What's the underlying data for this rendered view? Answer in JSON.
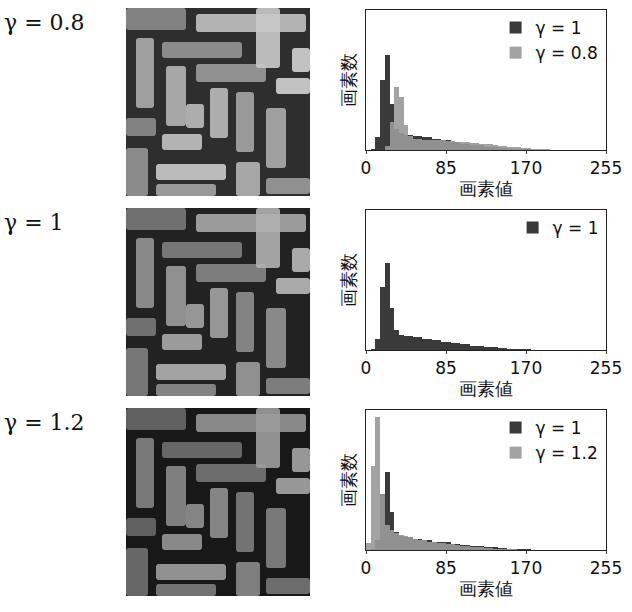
{
  "chart_data": [
    {
      "type": "histogram",
      "title": "γ = 0.8",
      "x_label": "画素値",
      "y_label": "画素数",
      "bins": [
        0,
        5,
        10,
        15,
        20,
        25,
        30,
        35,
        40,
        45,
        50,
        55,
        60,
        65,
        70,
        75,
        80,
        85,
        90,
        95,
        100,
        105,
        110,
        115,
        120,
        125,
        130,
        135,
        140,
        145,
        150,
        155,
        160,
        165,
        170,
        175,
        180,
        185,
        190,
        195,
        200,
        205,
        210,
        215,
        220,
        225,
        230,
        235,
        240,
        245,
        250,
        255
      ],
      "xlim": [
        0,
        255
      ],
      "xticks": [
        0,
        85,
        170,
        255
      ],
      "ylim": [
        0,
        100
      ],
      "tick_labels": "x",
      "legend": "upper right",
      "series": [
        {
          "name": "γ = 1",
          "color": "#3a3a3a",
          "values": [
            0,
            1,
            9,
            50,
            68,
            33,
            15,
            12,
            11,
            11,
            10,
            10,
            9,
            9,
            8,
            8,
            7,
            7,
            5.5,
            5.5,
            4.5,
            4.5,
            3.5,
            3.5,
            3.5,
            2,
            2,
            2,
            1.5,
            1.5,
            1,
            1,
            1,
            0.5,
            0.5,
            0,
            0,
            0,
            0,
            0,
            0,
            0,
            0,
            0,
            0,
            0,
            0,
            0,
            0,
            0,
            0
          ]
        },
        {
          "name": "γ = 0.8",
          "color": "#9a9a9a",
          "values": [
            0,
            0,
            0,
            0,
            3,
            20,
            45,
            38,
            18,
            10,
            8,
            8,
            7.5,
            7.5,
            7,
            7,
            7,
            6.5,
            6.5,
            6,
            6,
            5.5,
            5,
            5,
            4.5,
            4,
            4,
            3.5,
            3,
            3,
            2.5,
            2,
            2,
            1.5,
            1.5,
            1,
            1,
            0.5,
            0.5,
            0,
            0,
            0,
            0,
            0,
            0,
            0,
            0,
            0,
            0,
            0,
            0
          ]
        }
      ]
    },
    {
      "type": "histogram",
      "title": "γ = 1",
      "x_label": "画素値",
      "y_label": "画素数",
      "bins": [
        0,
        5,
        10,
        15,
        20,
        25,
        30,
        35,
        40,
        45,
        50,
        55,
        60,
        65,
        70,
        75,
        80,
        85,
        90,
        95,
        100,
        105,
        110,
        115,
        120,
        125,
        130,
        135,
        140,
        145,
        150,
        155,
        160,
        165,
        170,
        175,
        180,
        185,
        190,
        195,
        200,
        205,
        210,
        215,
        220,
        225,
        230,
        235,
        240,
        245,
        250,
        255
      ],
      "xlim": [
        0,
        255
      ],
      "xticks": [
        0,
        85,
        170,
        255
      ],
      "ylim": [
        0,
        100
      ],
      "tick_labels": "x",
      "legend": "upper right",
      "series": [
        {
          "name": "γ = 1",
          "color": "#3a3a3a",
          "values": [
            0,
            1,
            8,
            45,
            62,
            30,
            14,
            11,
            10,
            10,
            9,
            9,
            8,
            8,
            7,
            7,
            6,
            6,
            5,
            5,
            4,
            4,
            3,
            3,
            3,
            2,
            2,
            2,
            1.5,
            1.5,
            1,
            1,
            1,
            0.5,
            0.5,
            0,
            0,
            0,
            0,
            0,
            0,
            0,
            0,
            0,
            0,
            0,
            0,
            0,
            0,
            0,
            0
          ]
        }
      ]
    },
    {
      "type": "histogram",
      "title": "γ = 1.2",
      "x_label": "画素値",
      "y_label": "画素数",
      "bins": [
        0,
        5,
        10,
        15,
        20,
        25,
        30,
        35,
        40,
        45,
        50,
        55,
        60,
        65,
        70,
        75,
        80,
        85,
        90,
        95,
        100,
        105,
        110,
        115,
        120,
        125,
        130,
        135,
        140,
        145,
        150,
        155,
        160,
        165,
        170,
        175,
        180,
        185,
        190,
        195,
        200,
        205,
        210,
        215,
        220,
        225,
        230,
        235,
        240,
        245,
        250,
        255
      ],
      "xlim": [
        0,
        255
      ],
      "xticks": [
        0,
        85,
        170,
        255
      ],
      "ylim": [
        0,
        100
      ],
      "tick_labels": "x",
      "legend": "upper right",
      "series": [
        {
          "name": "γ = 1",
          "color": "#3a3a3a",
          "values": [
            0,
            1,
            7,
            40,
            56,
            27,
            13,
            10,
            9,
            9,
            8,
            8,
            7,
            7,
            6,
            6,
            5.5,
            5.5,
            4.5,
            4.5,
            3.5,
            3.5,
            3,
            3,
            3,
            2,
            2,
            2,
            1.5,
            1.5,
            1,
            1,
            1,
            0.5,
            0.5,
            0,
            0,
            0,
            0,
            0,
            0,
            0,
            0,
            0,
            0,
            0,
            0,
            0,
            0,
            0,
            0
          ]
        },
        {
          "name": "γ = 1.2",
          "color": "#9a9a9a",
          "values": [
            5,
            60,
            95,
            40,
            18,
            14,
            12,
            11,
            10,
            9,
            8,
            7,
            7,
            6,
            6,
            5,
            5,
            4,
            4,
            3.5,
            3,
            3,
            2.5,
            2,
            2,
            1.5,
            1.5,
            1,
            1,
            1,
            0.5,
            0.5,
            0,
            0,
            0,
            0,
            0,
            0,
            0,
            0,
            0,
            0,
            0,
            0,
            0,
            0,
            0,
            0,
            0,
            0,
            0
          ]
        }
      ]
    }
  ]
}
